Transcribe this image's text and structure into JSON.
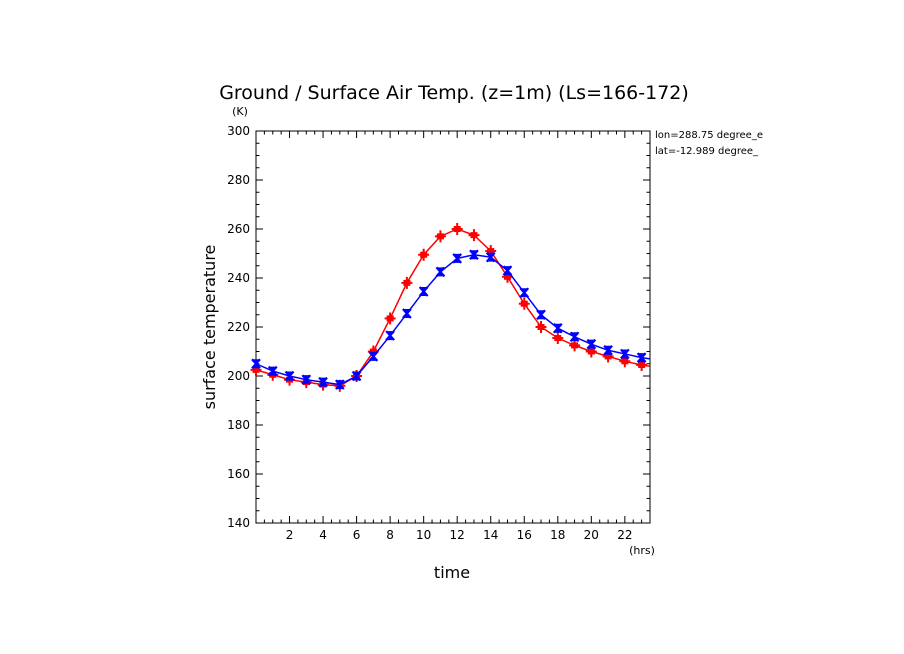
{
  "chart_data": {
    "type": "line",
    "title": "Ground / Surface Air Temp. (z=1m) (Ls=166-172)",
    "xlabel": "time",
    "ylabel": "surface temperature",
    "x_unit": "(hrs)",
    "y_unit": "(K)",
    "xlim": [
      0,
      23.5
    ],
    "ylim": [
      140,
      300
    ],
    "x_ticks": [
      2,
      4,
      6,
      8,
      10,
      12,
      14,
      16,
      18,
      20,
      22
    ],
    "y_ticks": [
      140,
      160,
      180,
      200,
      220,
      240,
      260,
      280,
      300
    ],
    "annotations": [
      "lon=288.75 degree_e",
      "lat=-12.989 degree_"
    ],
    "grid": false,
    "x": [
      0,
      1,
      2,
      3,
      4,
      5,
      6,
      7,
      8,
      9,
      10,
      11,
      12,
      13,
      14,
      15,
      16,
      17,
      18,
      19,
      20,
      21,
      22,
      23,
      23.5
    ],
    "series": [
      {
        "color": "#ff0000",
        "values": [
          202.5,
          200.5,
          198.5,
          197.5,
          196.5,
          196,
          200,
          210,
          223.5,
          238,
          249.5,
          257,
          260,
          257.5,
          251,
          240.5,
          229.5,
          220,
          215.5,
          212.5,
          210,
          208,
          206,
          204.5,
          204
        ]
      },
      {
        "color": "#0000ff",
        "values": [
          205,
          202,
          200,
          198.5,
          197.5,
          196.5,
          200,
          208,
          216.5,
          225.5,
          234.5,
          242.5,
          248,
          249.5,
          248.5,
          243,
          234,
          225,
          219.5,
          216,
          213,
          210.5,
          209,
          207.5,
          207
        ]
      }
    ]
  }
}
